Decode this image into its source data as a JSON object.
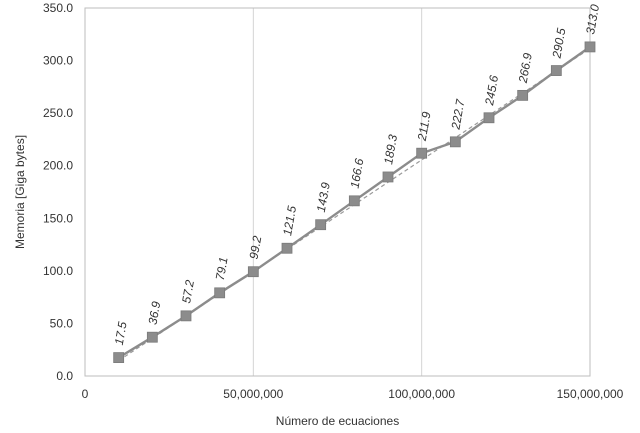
{
  "chart_data": {
    "type": "line",
    "xlabel": "Número de ecuaciones",
    "ylabel": "Memoria [Giga bytes]",
    "xlim": [
      0,
      150000000
    ],
    "ylim": [
      0,
      350
    ],
    "x_ticks": [
      0,
      50000000,
      100000000,
      150000000
    ],
    "x_tick_labels": [
      "0",
      "50,000,000",
      "100,000,000",
      "150,000,000"
    ],
    "y_ticks": [
      0,
      50,
      100,
      150,
      200,
      250,
      300,
      350
    ],
    "y_tick_labels": [
      "0.0",
      "50.0",
      "100.0",
      "150.0",
      "200.0",
      "250.0",
      "300.0",
      "350.0"
    ],
    "grid": "vertical",
    "series": [
      {
        "x": [
          10000000,
          20000000,
          30000000,
          40000000,
          50000000,
          60000000,
          70000000,
          80000000,
          90000000,
          100000000,
          110000000,
          120000000,
          130000000,
          140000000,
          150000000
        ],
        "values": [
          17.5,
          36.9,
          57.2,
          79.1,
          99.2,
          121.5,
          143.9,
          166.6,
          189.3,
          211.9,
          222.7,
          245.6,
          266.9,
          290.5,
          313.0
        ],
        "labels": [
          "17.5",
          "36.9",
          "57.2",
          "79.1",
          "99.2",
          "121.5",
          "143.9",
          "166.6",
          "189.3",
          "211.9",
          "222.7",
          "245.6",
          "266.9",
          "290.5",
          "313.0"
        ]
      }
    ],
    "trendline": {
      "x": [
        10000000,
        150000000
      ],
      "values": [
        14.6,
        311.5
      ],
      "style": "dashed"
    },
    "colors": {
      "line": "#8c8c8c",
      "marker": "#8c8c8c",
      "trend": "#9a9a9a",
      "grid": "#d4d4d4",
      "frame": "#bdbdbd"
    }
  }
}
